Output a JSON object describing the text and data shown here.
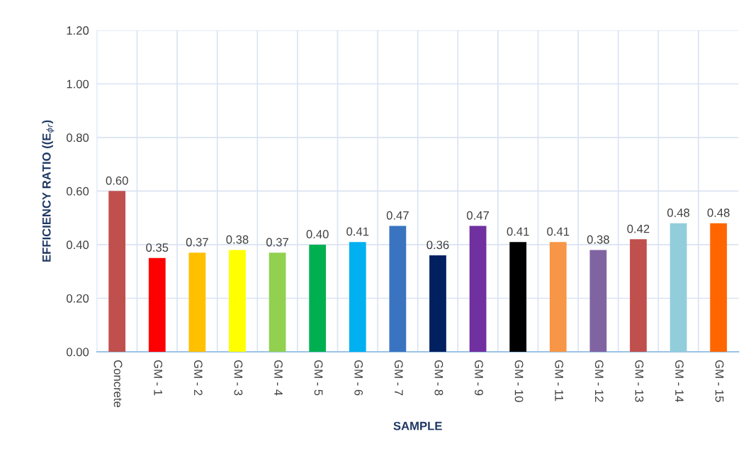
{
  "chart_data": {
    "type": "bar",
    "xlabel": "SAMPLE",
    "ylabel": "EFFICIENCY RATIO ((E$_{ϕr}$)",
    "categories": [
      "Concrete",
      "GM - 1",
      "GM - 2",
      "GM - 3",
      "GM - 4",
      "GM - 5",
      "GM - 6",
      "GM - 7",
      "GM - 8",
      "GM - 9",
      "GM - 10",
      "GM - 11",
      "GM - 12",
      "GM - 13",
      "GM - 14",
      "GM - 15"
    ],
    "values": [
      0.6,
      0.35,
      0.37,
      0.38,
      0.37,
      0.4,
      0.41,
      0.47,
      0.36,
      0.47,
      0.41,
      0.41,
      0.38,
      0.42,
      0.48,
      0.48
    ],
    "colors": [
      "#c0504d",
      "#ff0000",
      "#ffc000",
      "#ffff00",
      "#92d050",
      "#00b050",
      "#00b0f0",
      "#3a74c0",
      "#002060",
      "#7030a0",
      "#000000",
      "#f79646",
      "#8064a2",
      "#c0504d",
      "#92cddc",
      "#ff6600"
    ],
    "ylim": [
      0,
      1.2
    ],
    "yticks": [
      {
        "value": 0,
        "label": "0.00"
      },
      {
        "value": 0.2,
        "label": "0.20"
      },
      {
        "value": 0.4,
        "label": "0.40"
      },
      {
        "value": 0.6,
        "label": "0.60"
      },
      {
        "value": 0.8,
        "label": "0.80"
      },
      {
        "value": 1.0,
        "label": "1.00"
      },
      {
        "value": 1.2,
        "label": "1.20"
      }
    ],
    "value_labels": [
      "0.60",
      "0.35",
      "0.37",
      "0.38",
      "0.37",
      "0.40",
      "0.41",
      "0.47",
      "0.36",
      "0.47",
      "0.41",
      "0.41",
      "0.38",
      "0.42",
      "0.48",
      "0.48"
    ],
    "grid": true,
    "legend": false
  }
}
